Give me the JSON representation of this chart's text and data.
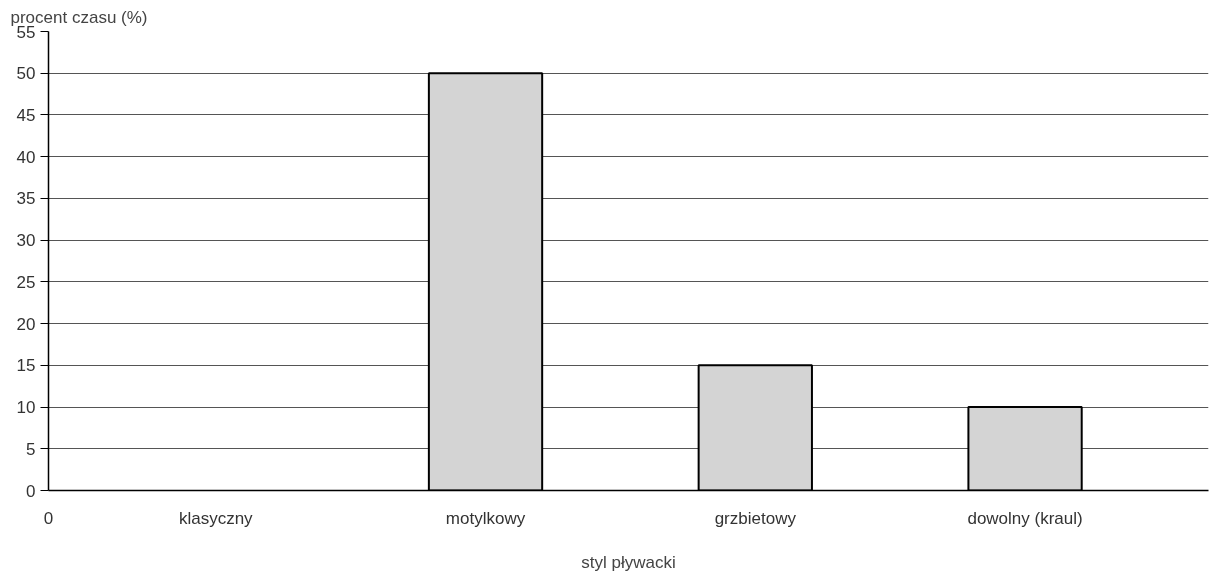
{
  "chart_data": {
    "type": "bar",
    "ylabel": "procent czasu (%)",
    "xlabel": "styl pływacki",
    "categories": [
      "klasyczny",
      "motylkowy",
      "grzbietowy",
      "dowolny (kraul)"
    ],
    "values": [
      null,
      50,
      15,
      10
    ],
    "color": "#d4d4d4",
    "ylim": [
      0,
      55
    ],
    "yticks": [
      0,
      5,
      10,
      15,
      20,
      25,
      30,
      35,
      40,
      45,
      50,
      55
    ],
    "grid": "y",
    "annotations": [
      "0"
    ]
  }
}
